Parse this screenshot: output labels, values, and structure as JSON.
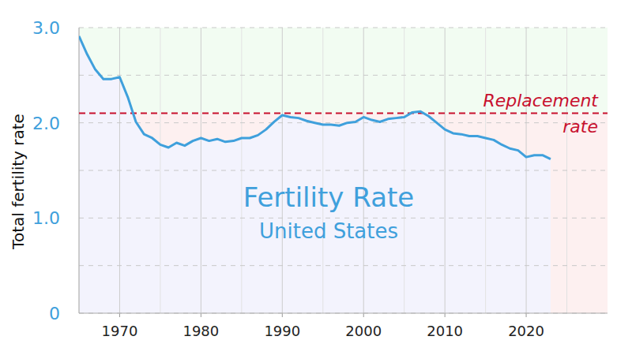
{
  "chart_data": {
    "type": "line",
    "title": "Fertility Rate",
    "subtitle": "United States",
    "y_label": "Total fertility rate",
    "x": [
      1965,
      1966,
      1967,
      1968,
      1969,
      1970,
      1971,
      1972,
      1973,
      1974,
      1975,
      1976,
      1977,
      1978,
      1979,
      1980,
      1981,
      1982,
      1983,
      1984,
      1985,
      1986,
      1987,
      1988,
      1989,
      1990,
      1991,
      1992,
      1993,
      1994,
      1995,
      1996,
      1997,
      1998,
      1999,
      2000,
      2001,
      2002,
      2003,
      2004,
      2005,
      2006,
      2007,
      2008,
      2009,
      2010,
      2011,
      2012,
      2013,
      2014,
      2015,
      2016,
      2017,
      2018,
      2019,
      2020,
      2021,
      2022,
      2023
    ],
    "series": [
      {
        "name": "Fertility Rate",
        "color": "#3fa0dc",
        "values": [
          2.91,
          2.72,
          2.56,
          2.46,
          2.46,
          2.48,
          2.27,
          2.01,
          1.88,
          1.84,
          1.77,
          1.74,
          1.79,
          1.76,
          1.81,
          1.84,
          1.81,
          1.83,
          1.8,
          1.81,
          1.84,
          1.84,
          1.87,
          1.93,
          2.01,
          2.08,
          2.06,
          2.05,
          2.02,
          2.0,
          1.98,
          1.98,
          1.97,
          2.0,
          2.01,
          2.06,
          2.03,
          2.01,
          2.04,
          2.05,
          2.06,
          2.11,
          2.12,
          2.07,
          2.0,
          1.93,
          1.89,
          1.88,
          1.86,
          1.86,
          1.84,
          1.82,
          1.77,
          1.73,
          1.71,
          1.64,
          1.66,
          1.66,
          1.62
        ]
      }
    ],
    "reference_line": {
      "value": 2.1,
      "label_lines": [
        "Replacement",
        "rate"
      ],
      "color": "#c8102e"
    },
    "xlim": [
      1965,
      2030
    ],
    "xticks": [
      1970,
      1980,
      1990,
      2000,
      2010,
      2020
    ],
    "ylim": [
      0,
      3
    ],
    "yticks": [
      0,
      {
        "value": 1,
        "label": "1.0"
      },
      {
        "value": 2,
        "label": "2.0"
      },
      {
        "value": 3,
        "label": "3.0"
      }
    ],
    "grid": true
  }
}
